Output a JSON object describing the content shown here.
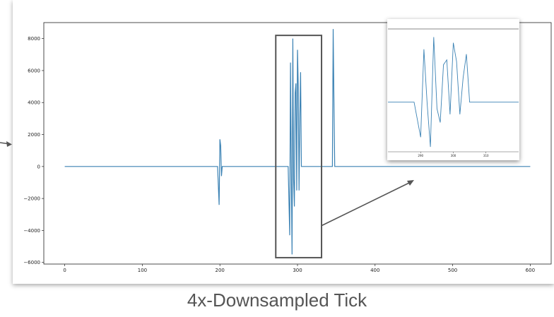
{
  "caption": "4x-Downsampled Tick",
  "colors": {
    "line": "#3b82b4",
    "frame": "#555555",
    "arrow": "#555555"
  },
  "chart_data": [
    {
      "type": "line",
      "title": "",
      "xlabel": "",
      "ylabel": "",
      "xlim": [
        -27,
        627
      ],
      "ylim": [
        -6100,
        9000
      ],
      "xticks": [
        0,
        100,
        200,
        300,
        400,
        500,
        600
      ],
      "yticks": [
        -6000,
        -4000,
        -2000,
        0,
        2000,
        4000,
        6000,
        8000
      ],
      "grid": false,
      "x": [
        0,
        197,
        199,
        200,
        201,
        202,
        203,
        205,
        288,
        290,
        291,
        292,
        293,
        294,
        295,
        296,
        297,
        298,
        299,
        300,
        301,
        302,
        303,
        304,
        305,
        306,
        308,
        310,
        312,
        313,
        345,
        346,
        347,
        348,
        349,
        600
      ],
      "y": [
        0,
        0,
        -2400,
        1700,
        1300,
        -600,
        0,
        0,
        0,
        -4300,
        6500,
        -200,
        -5500,
        8000,
        -800,
        -2500,
        4600,
        5200,
        -1500,
        7300,
        5000,
        -1500,
        3000,
        5900,
        0,
        0,
        0,
        0,
        0,
        0,
        0,
        8600,
        4000,
        0,
        0,
        0
      ],
      "highlight_box_x": [
        272,
        331
      ],
      "highlight_box_y": [
        -5700,
        8200
      ]
    },
    {
      "type": "line",
      "title": "",
      "xlabel": "",
      "ylabel": "",
      "xlim": [
        280,
        320
      ],
      "ylim": [
        -6100,
        9000
      ],
      "xticks": [
        290,
        300,
        310
      ],
      "grid": false,
      "x": [
        280,
        288,
        290,
        291,
        292,
        293,
        294,
        295,
        296,
        297,
        298,
        299,
        300,
        301,
        302,
        303,
        304,
        305,
        306,
        320
      ],
      "y": [
        0,
        0,
        -4300,
        6500,
        -200,
        -5500,
        8000,
        -800,
        -2500,
        4600,
        5200,
        -1500,
        7300,
        5000,
        -1500,
        3000,
        5900,
        0,
        0,
        0
      ]
    }
  ]
}
